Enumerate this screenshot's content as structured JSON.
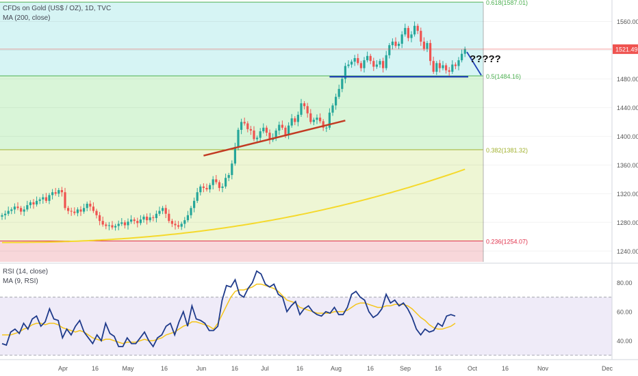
{
  "chart_data": [
    {
      "type": "candlestick",
      "title": "CFDs on Gold (US$ / OZ), 1D, TVC",
      "overlay_label": "MA (200, close)",
      "last_price": "1521.49",
      "y_ticks": [
        "1560.00",
        "1520.00",
        "1480.00",
        "1440.00",
        "1400.00",
        "1360.00",
        "1320.00",
        "1280.00",
        "1240.00"
      ],
      "y_tick_values": [
        1560,
        1520,
        1480,
        1440,
        1400,
        1360,
        1320,
        1280,
        1240
      ],
      "ylim": [
        1225,
        1590
      ],
      "x_ticks": [
        "Apr",
        "16",
        "May",
        "16",
        "Jun",
        "16",
        "Jul",
        "16",
        "Aug",
        "16",
        "Sep",
        "16",
        "Oct",
        "16",
        "Nov",
        "Dec"
      ],
      "fib_levels": [
        {
          "label": "0.618(1587.01)",
          "value": 1587.01,
          "color": "#4caf50"
        },
        {
          "label": "0.5(1484.16)",
          "value": 1484.16,
          "color": "#4caf50"
        },
        {
          "label": "0.382(1381.32)",
          "value": 1381.32,
          "color": "#a0b02c"
        },
        {
          "label": "0.236(1254.07)",
          "value": 1254.07,
          "color": "#e0314b"
        }
      ],
      "fib_zones": [
        {
          "from": 1587.01,
          "to": 1484.16,
          "color": "#d6f4f4"
        },
        {
          "from": 1484.16,
          "to": 1381.32,
          "color": "#d9f5d8"
        },
        {
          "from": 1381.32,
          "to": 1254.07,
          "color": "#eef6d4"
        },
        {
          "from": 1254.07,
          "to": 1225,
          "color": "#f8d7da"
        }
      ],
      "annotation": "?????",
      "closes": [
        1290,
        1292,
        1296,
        1298,
        1302,
        1300,
        1295,
        1298,
        1304,
        1308,
        1305,
        1310,
        1312,
        1315,
        1310,
        1318,
        1322,
        1320,
        1325,
        1322,
        1300,
        1296,
        1295,
        1293,
        1298,
        1295,
        1300,
        1306,
        1302,
        1296,
        1290,
        1282,
        1277,
        1275,
        1276,
        1273,
        1275,
        1278,
        1280,
        1276,
        1281,
        1284,
        1282,
        1279,
        1284,
        1288,
        1283,
        1287,
        1286,
        1292,
        1296,
        1300,
        1292,
        1282,
        1278,
        1276,
        1274,
        1278,
        1283,
        1290,
        1300,
        1310,
        1322,
        1330,
        1328,
        1326,
        1332,
        1340,
        1336,
        1328,
        1330,
        1342,
        1346,
        1362,
        1385,
        1409,
        1420,
        1418,
        1410,
        1408,
        1396,
        1398,
        1407,
        1412,
        1405,
        1395,
        1398,
        1408,
        1416,
        1412,
        1402,
        1415,
        1425,
        1420,
        1430,
        1446,
        1442,
        1432,
        1420,
        1423,
        1426,
        1421,
        1412,
        1412,
        1433,
        1443,
        1455,
        1466,
        1480,
        1498,
        1500,
        1504,
        1509,
        1502,
        1495,
        1506,
        1512,
        1505,
        1497,
        1500,
        1505,
        1495,
        1513,
        1527,
        1532,
        1526,
        1529,
        1542,
        1551,
        1537,
        1542,
        1554,
        1547,
        1532,
        1522,
        1530,
        1505,
        1490,
        1502,
        1495,
        1499,
        1492,
        1490,
        1500,
        1498,
        1506,
        1515,
        1522
      ],
      "ma200": {
        "start": 1252,
        "end": 1354
      },
      "support_line": {
        "from": [
          104,
          1483
        ],
        "to": [
          140,
          1483
        ],
        "color": "#1e3fb4"
      },
      "trend_line": {
        "from": [
          64,
          1373
        ],
        "to": [
          109,
          1422
        ],
        "color": "#c23a22"
      }
    },
    {
      "type": "line",
      "title": "RSI (14, close)",
      "overlay_label": "MA (9, RSI)",
      "y_ticks": [
        "80.00",
        "60.00",
        "40.00"
      ],
      "y_tick_values": [
        80,
        60,
        40
      ],
      "ylim": [
        27,
        92
      ],
      "band": [
        70,
        30
      ],
      "rsi": [
        38,
        37,
        46,
        48,
        45,
        52,
        48,
        55,
        57,
        50,
        53,
        62,
        55,
        54,
        42,
        48,
        44,
        50,
        54,
        46,
        42,
        38,
        44,
        40,
        52,
        45,
        43,
        36,
        36,
        42,
        38,
        38,
        42,
        46,
        40,
        36,
        42,
        44,
        50,
        52,
        44,
        53,
        60,
        50,
        64,
        55,
        54,
        52,
        47,
        47,
        50,
        68,
        78,
        77,
        82,
        72,
        70,
        76,
        80,
        88,
        86,
        79,
        77,
        79,
        72,
        70,
        60,
        64,
        67,
        58,
        62,
        64,
        60,
        58,
        57,
        60,
        59,
        63,
        58,
        58,
        63,
        72,
        74,
        70,
        68,
        60,
        56,
        58,
        62,
        72,
        66,
        68,
        64,
        66,
        62,
        56,
        48,
        44,
        48,
        46,
        47,
        52,
        50,
        57,
        58,
        57
      ],
      "rsi_ma": [
        44,
        44,
        44,
        45,
        46,
        48,
        49,
        51,
        52,
        52,
        51,
        52,
        52,
        51,
        49,
        48,
        47,
        46,
        47,
        46,
        44,
        42,
        41,
        40,
        41,
        41,
        40,
        39,
        38,
        39,
        39,
        39,
        40,
        41,
        40,
        40,
        41,
        42,
        44,
        45,
        46,
        48,
        50,
        51,
        53,
        53,
        52,
        51,
        50,
        48,
        52,
        58,
        64,
        70,
        74,
        75,
        75,
        76,
        77,
        79,
        79,
        78,
        77,
        76,
        74,
        71,
        68,
        67,
        66,
        63,
        62,
        61,
        60,
        59,
        59,
        59,
        59,
        60,
        60,
        60,
        61,
        63,
        65,
        66,
        66,
        65,
        64,
        63,
        63,
        64,
        64,
        65,
        65,
        65,
        64,
        62,
        59,
        56,
        54,
        51,
        49,
        48,
        48,
        49,
        50,
        52
      ]
    }
  ]
}
